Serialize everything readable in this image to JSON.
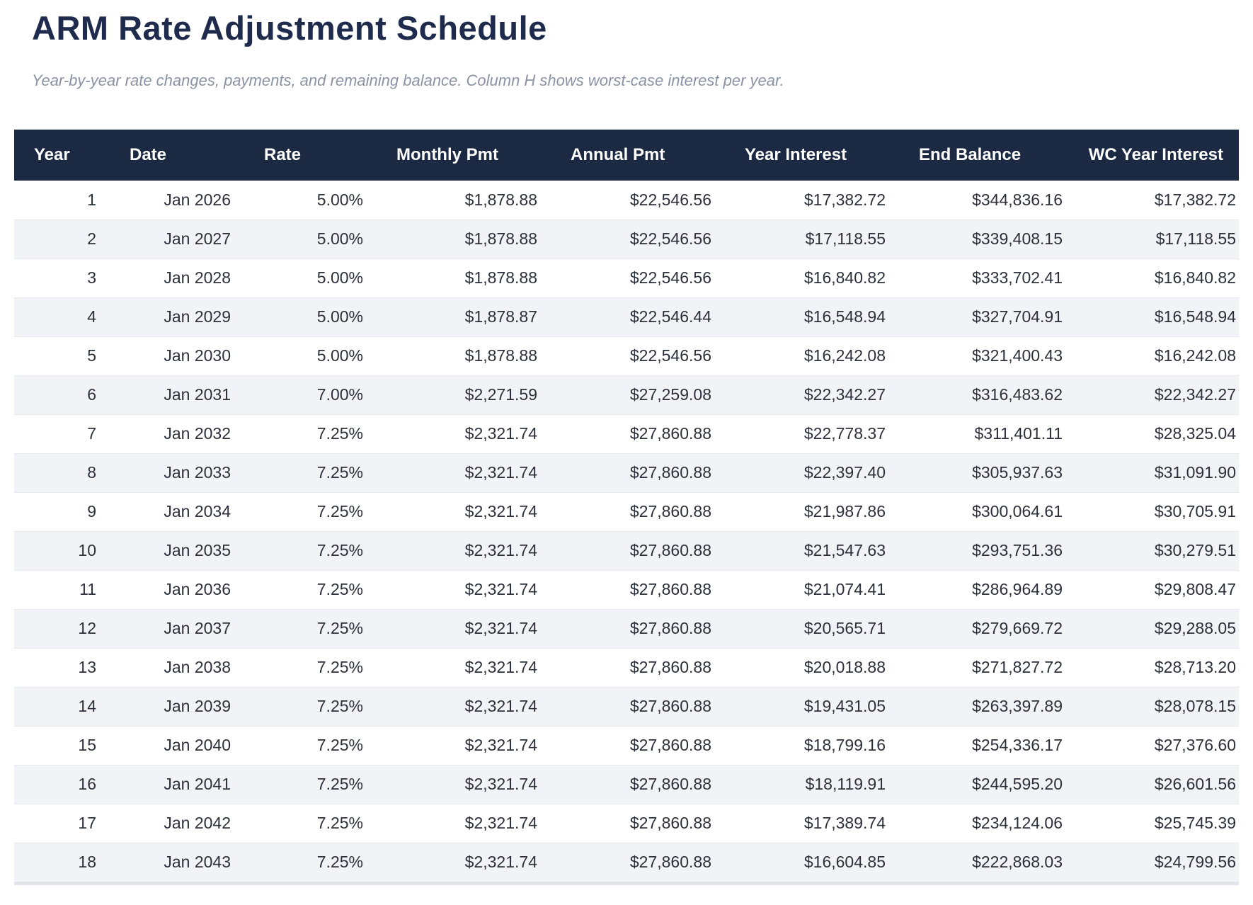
{
  "page": {
    "title": "ARM Rate Adjustment Schedule",
    "subtitle": "Year-by-year rate changes, payments, and remaining balance. Column H shows worst-case interest per year."
  },
  "colors": {
    "header_bg": "#1b2942",
    "header_text": "#ffffff",
    "title_text": "#1e2b4d",
    "subtitle_text": "#8a92a4",
    "body_text": "#2b303a",
    "row_alt_bg": "#f2f3f6",
    "row_border": "#e7e9ee",
    "bottom_edge": "#e2e4ec"
  },
  "table": {
    "columns": [
      {
        "label": "Year"
      },
      {
        "label": "Date"
      },
      {
        "label": "Rate"
      },
      {
        "label": "Monthly Pmt"
      },
      {
        "label": "Annual Pmt"
      },
      {
        "label": "Year Interest"
      },
      {
        "label": "End Balance"
      },
      {
        "label": "WC Year Interest"
      }
    ],
    "rows": [
      [
        "1",
        "Jan 2026",
        "5.00%",
        "$1,878.88",
        "$22,546.56",
        "$17,382.72",
        "$344,836.16",
        "$17,382.72"
      ],
      [
        "2",
        "Jan 2027",
        "5.00%",
        "$1,878.88",
        "$22,546.56",
        "$17,118.55",
        "$339,408.15",
        "$17,118.55"
      ],
      [
        "3",
        "Jan 2028",
        "5.00%",
        "$1,878.88",
        "$22,546.56",
        "$16,840.82",
        "$333,702.41",
        "$16,840.82"
      ],
      [
        "4",
        "Jan 2029",
        "5.00%",
        "$1,878.87",
        "$22,546.44",
        "$16,548.94",
        "$327,704.91",
        "$16,548.94"
      ],
      [
        "5",
        "Jan 2030",
        "5.00%",
        "$1,878.88",
        "$22,546.56",
        "$16,242.08",
        "$321,400.43",
        "$16,242.08"
      ],
      [
        "6",
        "Jan 2031",
        "7.00%",
        "$2,271.59",
        "$27,259.08",
        "$22,342.27",
        "$316,483.62",
        "$22,342.27"
      ],
      [
        "7",
        "Jan 2032",
        "7.25%",
        "$2,321.74",
        "$27,860.88",
        "$22,778.37",
        "$311,401.11",
        "$28,325.04"
      ],
      [
        "8",
        "Jan 2033",
        "7.25%",
        "$2,321.74",
        "$27,860.88",
        "$22,397.40",
        "$305,937.63",
        "$31,091.90"
      ],
      [
        "9",
        "Jan 2034",
        "7.25%",
        "$2,321.74",
        "$27,860.88",
        "$21,987.86",
        "$300,064.61",
        "$30,705.91"
      ],
      [
        "10",
        "Jan 2035",
        "7.25%",
        "$2,321.74",
        "$27,860.88",
        "$21,547.63",
        "$293,751.36",
        "$30,279.51"
      ],
      [
        "11",
        "Jan 2036",
        "7.25%",
        "$2,321.74",
        "$27,860.88",
        "$21,074.41",
        "$286,964.89",
        "$29,808.47"
      ],
      [
        "12",
        "Jan 2037",
        "7.25%",
        "$2,321.74",
        "$27,860.88",
        "$20,565.71",
        "$279,669.72",
        "$29,288.05"
      ],
      [
        "13",
        "Jan 2038",
        "7.25%",
        "$2,321.74",
        "$27,860.88",
        "$20,018.88",
        "$271,827.72",
        "$28,713.20"
      ],
      [
        "14",
        "Jan 2039",
        "7.25%",
        "$2,321.74",
        "$27,860.88",
        "$19,431.05",
        "$263,397.89",
        "$28,078.15"
      ],
      [
        "15",
        "Jan 2040",
        "7.25%",
        "$2,321.74",
        "$27,860.88",
        "$18,799.16",
        "$254,336.17",
        "$27,376.60"
      ],
      [
        "16",
        "Jan 2041",
        "7.25%",
        "$2,321.74",
        "$27,860.88",
        "$18,119.91",
        "$244,595.20",
        "$26,601.56"
      ],
      [
        "17",
        "Jan 2042",
        "7.25%",
        "$2,321.74",
        "$27,860.88",
        "$17,389.74",
        "$234,124.06",
        "$25,745.39"
      ],
      [
        "18",
        "Jan 2043",
        "7.25%",
        "$2,321.74",
        "$27,860.88",
        "$16,604.85",
        "$222,868.03",
        "$24,799.56"
      ]
    ]
  }
}
